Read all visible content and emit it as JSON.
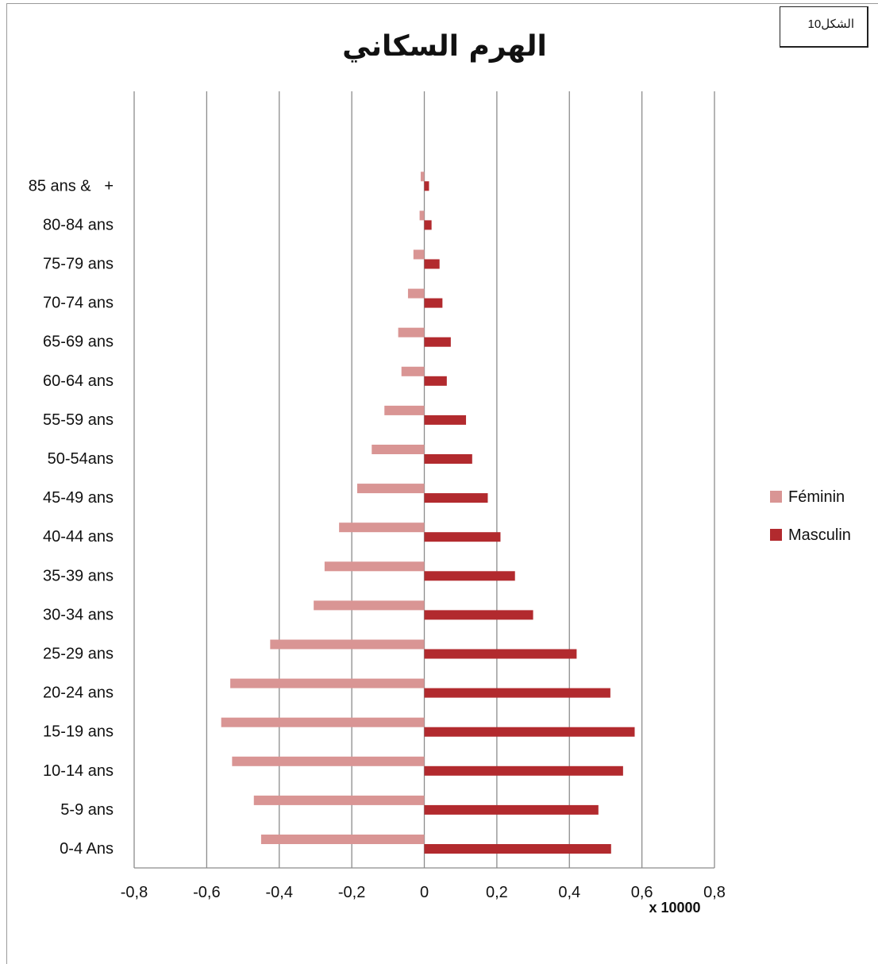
{
  "figure_label": "الشكل10",
  "chart_data": {
    "type": "bar",
    "orientation": "horizontal",
    "title": "الهرم السكاني",
    "unit_label": "x 10000",
    "categories": [
      "0-4 Ans",
      "5-9 ans",
      "10-14 ans",
      "15-19 ans",
      "20-24 ans",
      "25-29 ans",
      "30-34 ans",
      "35-39 ans",
      "40-44 ans",
      "45-49 ans",
      "50-54ans",
      "55-59 ans",
      "60-64 ans",
      "65-69 ans",
      "70-74 ans",
      "75-79 ans",
      "80-84 ans",
      "85 ans &   +"
    ],
    "series": [
      {
        "name": "Féminin",
        "color": "#d99594",
        "values": [
          -0.45,
          -0.47,
          -0.53,
          -0.56,
          -0.535,
          -0.425,
          -0.305,
          -0.275,
          -0.235,
          -0.185,
          -0.145,
          -0.11,
          -0.063,
          -0.072,
          -0.045,
          -0.03,
          -0.013,
          -0.01
        ]
      },
      {
        "name": "Masculin",
        "color": "#b22a2e",
        "values": [
          0.515,
          0.48,
          0.548,
          0.58,
          0.513,
          0.42,
          0.3,
          0.25,
          0.21,
          0.175,
          0.132,
          0.115,
          0.062,
          0.073,
          0.05,
          0.042,
          0.02,
          0.013
        ]
      }
    ],
    "xlim": [
      -0.8,
      0.8
    ],
    "xticks": [
      "-0,8",
      "-0,6",
      "-0,4",
      "-0,2",
      "0",
      "0,2",
      "0,4",
      "0,6",
      "0,8"
    ],
    "grid": "vertical",
    "legend_position": "right"
  }
}
